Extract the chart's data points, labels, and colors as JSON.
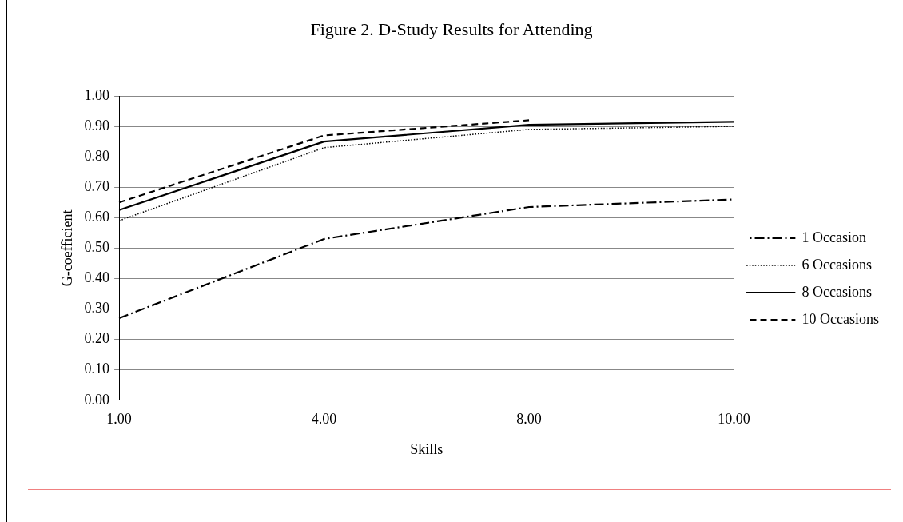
{
  "chart_data": {
    "type": "line",
    "title": "Figure 2.  D-Study Results for Attending",
    "xlabel": "Skills",
    "ylabel": "G-coefficient",
    "categories": [
      "1.00",
      "4.00",
      "8.00",
      "10.00"
    ],
    "series": [
      {
        "name": "1 Occasion",
        "color": "#000000",
        "line_style": "dashdot",
        "values": [
          0.27,
          0.53,
          0.635,
          0.66
        ]
      },
      {
        "name": "6 Occasions",
        "color": "#000000",
        "line_style": "dotted",
        "values": [
          0.59,
          0.83,
          0.89,
          0.9
        ]
      },
      {
        "name": "8 Occasions",
        "color": "#000000",
        "line_style": "solid",
        "values": [
          0.625,
          0.85,
          0.905,
          0.915
        ]
      },
      {
        "name": "10 Occasions",
        "color": "#000000",
        "line_style": "dashed",
        "values": [
          0.65,
          0.87,
          0.92,
          null
        ]
      }
    ],
    "ylim": [
      0,
      1
    ],
    "yticks": [
      {
        "value": 0,
        "label": "0.00"
      },
      {
        "value": 0.1,
        "label": "0.10"
      },
      {
        "value": 0.2,
        "label": "0.20"
      },
      {
        "value": 0.3,
        "label": "0.30"
      },
      {
        "value": 0.4,
        "label": "0.40"
      },
      {
        "value": 0.5,
        "label": "0.50"
      },
      {
        "value": 0.6,
        "label": "0.60"
      },
      {
        "value": 0.7,
        "label": "0.70"
      },
      {
        "value": 0.8,
        "label": "0.80"
      },
      {
        "value": 0.9,
        "label": "0.90"
      },
      {
        "value": 1,
        "label": "1.00"
      }
    ],
    "grid": "y",
    "legend": "right",
    "marker": "none"
  }
}
